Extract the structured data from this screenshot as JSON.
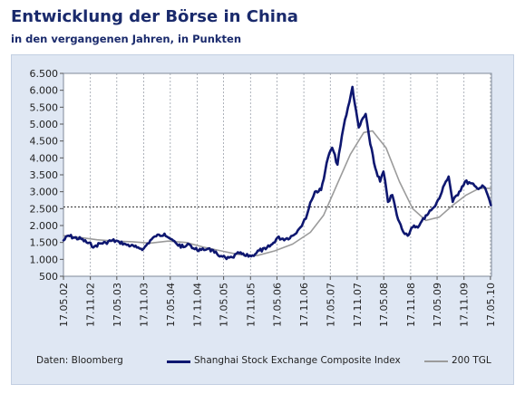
{
  "header": {
    "title": "Entwicklung der Börse in China",
    "subtitle": "in den vergangenen Jahren, in Punkten"
  },
  "footer": {
    "source": "Daten: Bloomberg"
  },
  "colors": {
    "index": "#0e1770",
    "ma": "#9b9b9b",
    "reference": "#333333",
    "grid": "#9aa0aa",
    "panel": "#dfe7f3",
    "plot": "#ffffff"
  },
  "chart_data": {
    "type": "line",
    "title": "Entwicklung der Börse in China",
    "subtitle": "in den vergangenen Jahren, in Punkten",
    "xlabel": "",
    "ylabel": "",
    "ylim": [
      500,
      6500
    ],
    "y_ticks": [
      500,
      1000,
      1500,
      2000,
      2500,
      3000,
      3500,
      4000,
      4500,
      5000,
      5500,
      6000,
      6500
    ],
    "y_tick_labels": [
      "500",
      "1.000",
      "1.500",
      "2.000",
      "2.500",
      "3.000",
      "3.500",
      "4.000",
      "4.500",
      "5.000",
      "5.500",
      "6.000",
      "6.500"
    ],
    "x_ticks": [
      "2002-05-17",
      "2002-11-17",
      "2003-05-17",
      "2003-11-17",
      "2004-05-17",
      "2004-11-17",
      "2005-05-17",
      "2005-11-17",
      "2006-05-17",
      "2006-11-17",
      "2007-05-17",
      "2007-11-17",
      "2008-05-17",
      "2008-11-17",
      "2009-05-17",
      "2009-11-17",
      "2010-05-17"
    ],
    "x_tick_labels": [
      "17.05.02",
      "17.11.02",
      "17.05.03",
      "17.11.03",
      "17.05.04",
      "17.11.04",
      "17.05.05",
      "17.11.05",
      "17.05.06",
      "17.11.06",
      "17.05.07",
      "17.11.07",
      "17.05.08",
      "17.11.08",
      "17.05.09",
      "17.11.09",
      "17.05.10"
    ],
    "xlim": [
      "2002-05-17",
      "2010-05-24"
    ],
    "grid": "vertical-dashed",
    "legend_placement": "bottom",
    "reference_line": {
      "y": 2550,
      "style": "dashed"
    },
    "series": [
      {
        "name": "Shanghai Stock Exchange Composite Index",
        "color": "#0e1770",
        "style": "thick",
        "x": [
          "2002-05-17",
          "2002-06-20",
          "2002-08-01",
          "2002-09-15",
          "2002-11-01",
          "2002-12-15",
          "2003-01-20",
          "2003-03-01",
          "2003-04-15",
          "2003-06-01",
          "2003-07-15",
          "2003-08-20",
          "2003-10-01",
          "2003-11-17",
          "2004-01-01",
          "2004-02-10",
          "2004-04-07",
          "2004-05-20",
          "2004-07-01",
          "2004-08-15",
          "2004-09-25",
          "2004-11-01",
          "2004-12-15",
          "2005-02-01",
          "2005-03-15",
          "2005-05-01",
          "2005-06-06",
          "2005-07-15",
          "2005-09-01",
          "2005-10-15",
          "2005-12-01",
          "2006-01-15",
          "2006-03-01",
          "2006-04-15",
          "2006-05-20",
          "2006-07-15",
          "2006-09-01",
          "2006-10-15",
          "2006-12-01",
          "2006-12-31",
          "2007-02-01",
          "2007-03-15",
          "2007-05-01",
          "2007-05-30",
          "2007-07-05",
          "2007-08-15",
          "2007-09-15",
          "2007-10-16",
          "2007-11-01",
          "2007-11-28",
          "2008-01-14",
          "2008-02-15",
          "2008-03-20",
          "2008-04-22",
          "2008-05-15",
          "2008-06-15",
          "2008-07-15",
          "2008-08-15",
          "2008-09-18",
          "2008-10-28",
          "2008-12-01",
          "2009-01-15",
          "2009-03-01",
          "2009-04-15",
          "2009-06-01",
          "2009-07-15",
          "2009-08-04",
          "2009-09-01",
          "2009-10-15",
          "2009-11-24",
          "2010-01-01",
          "2010-02-15",
          "2010-04-01",
          "2010-04-20",
          "2010-05-20"
        ],
        "values": [
          1560,
          1700,
          1640,
          1600,
          1480,
          1380,
          1470,
          1500,
          1560,
          1520,
          1450,
          1400,
          1350,
          1320,
          1560,
          1680,
          1760,
          1600,
          1450,
          1360,
          1440,
          1300,
          1280,
          1320,
          1200,
          1100,
          1010,
          1060,
          1180,
          1100,
          1120,
          1260,
          1300,
          1450,
          1640,
          1600,
          1700,
          1900,
          2200,
          2680,
          3000,
          3050,
          4000,
          4300,
          3800,
          4900,
          5500,
          6100,
          5600,
          4900,
          5300,
          4400,
          3700,
          3300,
          3600,
          2700,
          2900,
          2300,
          1900,
          1700,
          1950,
          2000,
          2300,
          2500,
          2800,
          3300,
          3450,
          2700,
          3000,
          3300,
          3250,
          3100,
          3150,
          3000,
          2600
        ]
      },
      {
        "name": "200 TGL",
        "color": "#9b9b9b",
        "style": "thin",
        "x": [
          "2002-05-17",
          "2002-09-01",
          "2003-01-01",
          "2003-05-01",
          "2003-09-01",
          "2004-01-01",
          "2004-05-01",
          "2004-09-01",
          "2005-01-01",
          "2005-05-01",
          "2005-09-01",
          "2006-01-01",
          "2006-05-01",
          "2006-09-01",
          "2007-01-01",
          "2007-04-01",
          "2007-07-01",
          "2007-10-01",
          "2008-01-01",
          "2008-03-01",
          "2008-06-01",
          "2008-09-01",
          "2008-12-01",
          "2009-03-01",
          "2009-06-01",
          "2009-09-01",
          "2009-12-01",
          "2010-03-01",
          "2010-05-20"
        ],
        "values": [
          1700,
          1650,
          1580,
          1540,
          1520,
          1480,
          1540,
          1500,
          1360,
          1250,
          1140,
          1110,
          1250,
          1450,
          1800,
          2300,
          3200,
          4100,
          4750,
          4800,
          4300,
          3300,
          2500,
          2150,
          2250,
          2600,
          2900,
          3100,
          3100
        ]
      }
    ]
  },
  "legend": {
    "series_1": "Shanghai Stock Exchange Composite Index",
    "series_2": "200 TGL"
  }
}
